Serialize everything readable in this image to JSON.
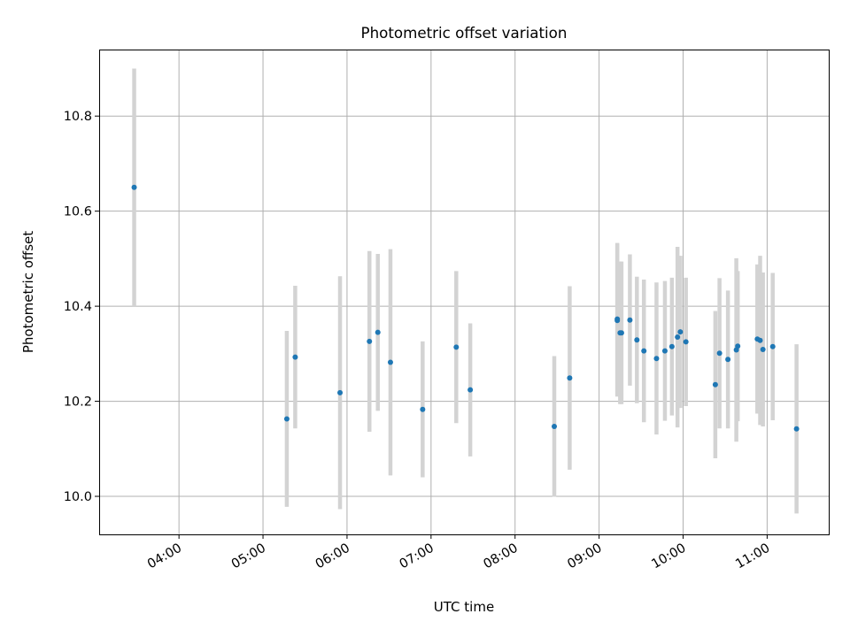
{
  "chart_data": {
    "type": "scatter",
    "title": "Photometric offset variation",
    "xlabel": "UTC time",
    "ylabel": "Photometric offset",
    "x_axis_type": "time",
    "xlim": [
      "03:03",
      "11:44"
    ],
    "ylim": [
      9.92,
      10.94
    ],
    "x_ticks": [
      "04:00",
      "05:00",
      "06:00",
      "07:00",
      "08:00",
      "09:00",
      "10:00",
      "11:00"
    ],
    "y_ticks": [
      10.0,
      10.2,
      10.4,
      10.6,
      10.8
    ],
    "y_tick_labels": [
      "10.0",
      "10.2",
      "10.4",
      "10.6",
      "10.8"
    ],
    "grid": true,
    "marker_color": "#1f77b4",
    "errorbar_color": "#d3d3d3",
    "points": [
      {
        "x": "03:28",
        "y": 10.65,
        "err": 0.25
      },
      {
        "x": "05:17",
        "y": 10.163,
        "err": 0.185
      },
      {
        "x": "05:23",
        "y": 10.293,
        "err": 0.15
      },
      {
        "x": "05:55",
        "y": 10.218,
        "err": 0.245
      },
      {
        "x": "06:16",
        "y": 10.326,
        "err": 0.19
      },
      {
        "x": "06:22",
        "y": 10.345,
        "err": 0.165
      },
      {
        "x": "06:31",
        "y": 10.282,
        "err": 0.238
      },
      {
        "x": "06:54",
        "y": 10.183,
        "err": 0.143
      },
      {
        "x": "07:18",
        "y": 10.314,
        "err": 0.16
      },
      {
        "x": "07:28",
        "y": 10.224,
        "err": 0.14
      },
      {
        "x": "08:28",
        "y": 10.147,
        "err": 0.148
      },
      {
        "x": "08:39",
        "y": 10.249,
        "err": 0.193
      },
      {
        "x": "09:13",
        "y": 10.373,
        "err": 0.16
      },
      {
        "x": "09:13",
        "y": 10.37,
        "err": 0.16
      },
      {
        "x": "09:15",
        "y": 10.344,
        "err": 0.15
      },
      {
        "x": "09:16",
        "y": 10.344,
        "err": 0.15
      },
      {
        "x": "09:22",
        "y": 10.371,
        "err": 0.138
      },
      {
        "x": "09:27",
        "y": 10.329,
        "err": 0.133
      },
      {
        "x": "09:32",
        "y": 10.306,
        "err": 0.15
      },
      {
        "x": "09:41",
        "y": 10.29,
        "err": 0.16
      },
      {
        "x": "09:47",
        "y": 10.306,
        "err": 0.147
      },
      {
        "x": "09:52",
        "y": 10.315,
        "err": 0.145
      },
      {
        "x": "09:56",
        "y": 10.335,
        "err": 0.19
      },
      {
        "x": "09:58",
        "y": 10.346,
        "err": 0.16
      },
      {
        "x": "10:02",
        "y": 10.325,
        "err": 0.135
      },
      {
        "x": "10:23",
        "y": 10.235,
        "err": 0.155
      },
      {
        "x": "10:26",
        "y": 10.301,
        "err": 0.158
      },
      {
        "x": "10:32",
        "y": 10.288,
        "err": 0.145
      },
      {
        "x": "10:38",
        "y": 10.308,
        "err": 0.193
      },
      {
        "x": "10:39",
        "y": 10.316,
        "err": 0.158
      },
      {
        "x": "10:53",
        "y": 10.331,
        "err": 0.157
      },
      {
        "x": "10:55",
        "y": 10.328,
        "err": 0.178
      },
      {
        "x": "10:57",
        "y": 10.309,
        "err": 0.162
      },
      {
        "x": "11:04",
        "y": 10.315,
        "err": 0.155
      },
      {
        "x": "11:21",
        "y": 10.142,
        "err": 0.178
      }
    ]
  }
}
